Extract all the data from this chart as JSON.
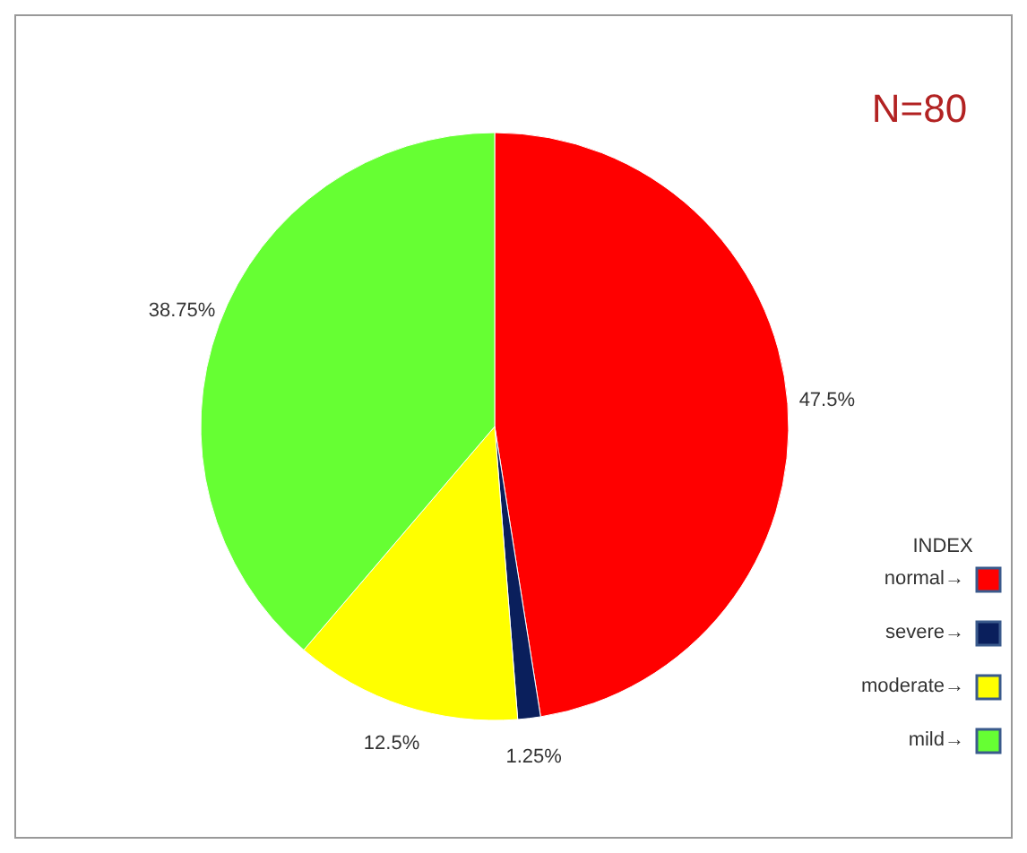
{
  "chart_data": {
    "type": "pie",
    "title": "N=80",
    "legend_title": "INDEX",
    "categories": [
      "normal→",
      "severe→",
      "moderate→",
      "mild→"
    ],
    "values": [
      47.5,
      1.25,
      12.5,
      38.75
    ],
    "colors": [
      "#ff0000",
      "#0a1f5c",
      "#ffff00",
      "#66ff33"
    ],
    "value_labels": [
      "47.5%",
      "1.25%",
      "12.5%",
      "38.75%"
    ],
    "legend": "right"
  }
}
